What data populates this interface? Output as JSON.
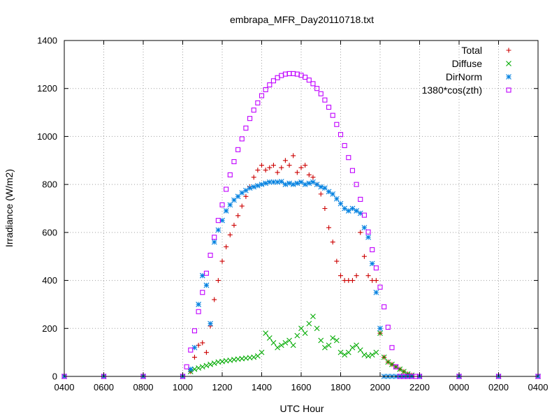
{
  "chart_data": {
    "type": "scatter",
    "title": "embrapa_MFR_Day20110718.txt",
    "xlabel": "UTC Hour",
    "ylabel": "Irradiance (W/m2)",
    "x_unit": "hours elapsed on the 24-hour UTC clock starting at 0400",
    "xlim": [
      0,
      24
    ],
    "ylim": [
      0,
      1400
    ],
    "grid": true,
    "legend_position": "top-right",
    "x_ticks": [
      {
        "value": 0,
        "label": "0400"
      },
      {
        "value": 2,
        "label": "0600"
      },
      {
        "value": 4,
        "label": "0800"
      },
      {
        "value": 6,
        "label": "1000"
      },
      {
        "value": 8,
        "label": "1200"
      },
      {
        "value": 10,
        "label": "1400"
      },
      {
        "value": 12,
        "label": "1600"
      },
      {
        "value": 14,
        "label": "1800"
      },
      {
        "value": 16,
        "label": "2000"
      },
      {
        "value": 18,
        "label": "2200"
      },
      {
        "value": 20,
        "label": "0000"
      },
      {
        "value": 22,
        "label": "0200"
      },
      {
        "value": 24,
        "label": "0400"
      }
    ],
    "y_ticks": [
      {
        "value": 0,
        "label": "0"
      },
      {
        "value": 200,
        "label": "200"
      },
      {
        "value": 400,
        "label": "400"
      },
      {
        "value": 600,
        "label": "600"
      },
      {
        "value": 800,
        "label": "800"
      },
      {
        "value": 1000,
        "label": "1000"
      },
      {
        "value": 1200,
        "label": "1200"
      },
      {
        "value": 1400,
        "label": "1400"
      }
    ],
    "series": [
      {
        "name": "Total",
        "marker": "plus",
        "color": "#cc0000",
        "x": [
          0,
          2,
          4,
          6,
          6.4,
          6.6,
          6.8,
          7,
          7.2,
          7.4,
          7.6,
          7.8,
          8,
          8.2,
          8.4,
          8.6,
          8.8,
          9,
          9.2,
          9.4,
          9.6,
          9.8,
          10,
          10.2,
          10.4,
          10.6,
          10.8,
          11,
          11.2,
          11.4,
          11.6,
          11.8,
          12,
          12.2,
          12.4,
          12.6,
          12.8,
          13,
          13.2,
          13.4,
          13.6,
          13.8,
          14,
          14.2,
          14.4,
          14.6,
          14.8,
          15,
          15.2,
          15.4,
          15.6,
          15.8,
          16,
          16.2,
          16.4,
          16.6,
          16.8,
          17,
          17.2,
          17.4,
          17.6,
          18,
          20,
          22,
          24
        ],
        "y": [
          0,
          0,
          0,
          0,
          20,
          80,
          130,
          140,
          100,
          210,
          320,
          400,
          480,
          540,
          590,
          630,
          670,
          710,
          750,
          790,
          830,
          860,
          880,
          860,
          870,
          880,
          850,
          870,
          900,
          880,
          920,
          850,
          870,
          880,
          840,
          830,
          800,
          760,
          700,
          620,
          560,
          480,
          420,
          400,
          400,
          400,
          420,
          600,
          500,
          420,
          400,
          400,
          180,
          80,
          60,
          50,
          40,
          30,
          20,
          10,
          5,
          0,
          0,
          0,
          0
        ]
      },
      {
        "name": "Diffuse",
        "marker": "x",
        "color": "#00aa00",
        "x": [
          0,
          2,
          4,
          6,
          6.4,
          6.6,
          6.8,
          7,
          7.2,
          7.4,
          7.6,
          7.8,
          8,
          8.2,
          8.4,
          8.6,
          8.8,
          9,
          9.2,
          9.4,
          9.6,
          9.8,
          10,
          10.2,
          10.4,
          10.6,
          10.8,
          11,
          11.2,
          11.4,
          11.6,
          11.8,
          12,
          12.2,
          12.4,
          12.6,
          12.8,
          13,
          13.2,
          13.4,
          13.6,
          13.8,
          14,
          14.2,
          14.4,
          14.6,
          14.8,
          15,
          15.2,
          15.4,
          15.6,
          15.8,
          16,
          16.2,
          16.4,
          16.6,
          16.8,
          17,
          17.2,
          17.4,
          17.6,
          18,
          20,
          22,
          24
        ],
        "y": [
          0,
          0,
          0,
          0,
          20,
          30,
          35,
          40,
          45,
          50,
          55,
          60,
          62,
          65,
          67,
          70,
          72,
          74,
          76,
          78,
          80,
          85,
          100,
          180,
          160,
          140,
          120,
          130,
          140,
          150,
          130,
          170,
          200,
          180,
          220,
          250,
          200,
          150,
          120,
          130,
          160,
          150,
          100,
          90,
          100,
          120,
          130,
          110,
          90,
          85,
          90,
          100,
          180,
          80,
          60,
          50,
          40,
          30,
          20,
          10,
          5,
          0,
          0,
          0,
          0
        ]
      },
      {
        "name": "DirNorm",
        "marker": "star",
        "color": "#0080e0",
        "x": [
          0,
          2,
          4,
          6,
          6.4,
          6.6,
          6.8,
          7,
          7.2,
          7.4,
          7.6,
          7.8,
          8,
          8.2,
          8.4,
          8.6,
          8.8,
          9,
          9.2,
          9.4,
          9.6,
          9.8,
          10,
          10.2,
          10.4,
          10.6,
          10.8,
          11,
          11.2,
          11.4,
          11.6,
          11.8,
          12,
          12.2,
          12.4,
          12.6,
          12.8,
          13,
          13.2,
          13.4,
          13.6,
          13.8,
          14,
          14.2,
          14.4,
          14.6,
          14.8,
          15,
          15.2,
          15.4,
          15.6,
          15.8,
          16,
          16.2,
          16.4,
          16.6,
          16.8,
          17,
          17.2,
          17.4,
          17.6,
          18,
          20,
          22,
          24
        ],
        "y": [
          0,
          0,
          0,
          0,
          30,
          120,
          300,
          420,
          380,
          220,
          560,
          610,
          650,
          690,
          715,
          735,
          750,
          765,
          775,
          785,
          790,
          795,
          800,
          805,
          810,
          810,
          810,
          812,
          800,
          805,
          800,
          805,
          810,
          800,
          805,
          810,
          800,
          790,
          785,
          770,
          760,
          740,
          720,
          700,
          690,
          700,
          690,
          680,
          620,
          580,
          470,
          350,
          200,
          0,
          0,
          0,
          0,
          0,
          0,
          0,
          0,
          0,
          0,
          0,
          0
        ]
      },
      {
        "name": "1380*cos(zth)",
        "marker": "square",
        "color": "#c000ff",
        "x": [
          0,
          2,
          4,
          6,
          6.2,
          6.4,
          6.6,
          6.8,
          7,
          7.2,
          7.4,
          7.6,
          7.8,
          8,
          8.2,
          8.4,
          8.6,
          8.8,
          9,
          9.2,
          9.4,
          9.6,
          9.8,
          10,
          10.2,
          10.4,
          10.6,
          10.8,
          11,
          11.2,
          11.4,
          11.6,
          11.8,
          12,
          12.2,
          12.4,
          12.6,
          12.8,
          13,
          13.2,
          13.4,
          13.6,
          13.8,
          14,
          14.2,
          14.4,
          14.6,
          14.8,
          15,
          15.2,
          15.4,
          15.6,
          15.8,
          16,
          16.2,
          16.4,
          16.6,
          16.8,
          17,
          17.2,
          17.4,
          17.6,
          17.8,
          18,
          20,
          22,
          24
        ],
        "y": [
          0,
          0,
          0,
          0,
          40,
          110,
          190,
          270,
          350,
          430,
          505,
          580,
          650,
          715,
          780,
          840,
          895,
          945,
          990,
          1035,
          1075,
          1110,
          1140,
          1170,
          1195,
          1215,
          1232,
          1245,
          1254,
          1260,
          1262,
          1262,
          1260,
          1255,
          1247,
          1235,
          1220,
          1200,
          1178,
          1152,
          1122,
          1088,
          1050,
          1008,
          962,
          912,
          858,
          800,
          738,
          672,
          602,
          528,
          452,
          372,
          290,
          205,
          120,
          40,
          0,
          0,
          0,
          0,
          0,
          0,
          0,
          0,
          0
        ]
      }
    ]
  }
}
